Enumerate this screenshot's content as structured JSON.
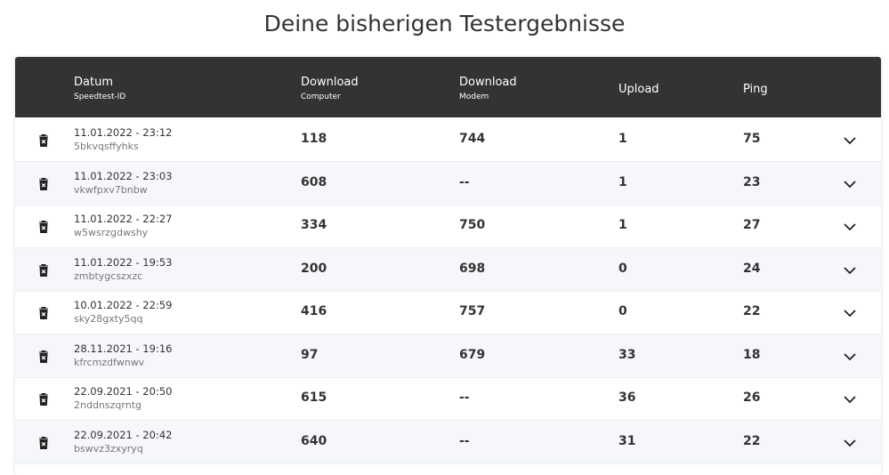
{
  "title": "Deine bisherigen Testergebnisse",
  "table": {
    "headers": [
      {
        "title": "Datum",
        "sub": "Speedtest-ID"
      },
      {
        "title": "Download",
        "sub": "Computer"
      },
      {
        "title": "Download",
        "sub": "Modem"
      },
      {
        "title": "Upload"
      },
      {
        "title": "Ping"
      }
    ],
    "rows": [
      {
        "date": "11.01.2022 - 23:12",
        "id": "5bkvqsffyhks",
        "download_computer": 118,
        "download_modem": 744,
        "upload": 1,
        "ping": 75
      },
      {
        "date": "11.01.2022 - 23:03",
        "id": "vkwfpxv7bnbw",
        "download_computer": 608,
        "download_modem": "--",
        "upload": 1,
        "ping": 23
      },
      {
        "date": "11.01.2022 - 22:27",
        "id": "w5wsrzgdwshy",
        "download_computer": 334,
        "download_modem": 750,
        "upload": 1,
        "ping": 27
      },
      {
        "date": "11.01.2022 - 19:53",
        "id": "zmbtygcszxzc",
        "download_computer": 200,
        "download_modem": 698,
        "upload": 0,
        "ping": 24
      },
      {
        "date": "10.01.2022 - 22:59",
        "id": "sky28gxty5qq",
        "download_computer": 416,
        "download_modem": 757,
        "upload": 0,
        "ping": 22
      },
      {
        "date": "28.11.2021 - 19:16",
        "id": "kfrcmzdfwnwv",
        "download_computer": 97,
        "download_modem": 679,
        "upload": 33,
        "ping": 18
      },
      {
        "date": "22.09.2021 - 20:50",
        "id": "2nddnszqrntg",
        "download_computer": 615,
        "download_modem": "--",
        "upload": 36,
        "ping": 26
      },
      {
        "date": "22.09.2021 - 20:42",
        "id": "bswvz3zxyryq",
        "download_computer": 640,
        "download_modem": "--",
        "upload": 31,
        "ping": 22
      }
    ]
  }
}
